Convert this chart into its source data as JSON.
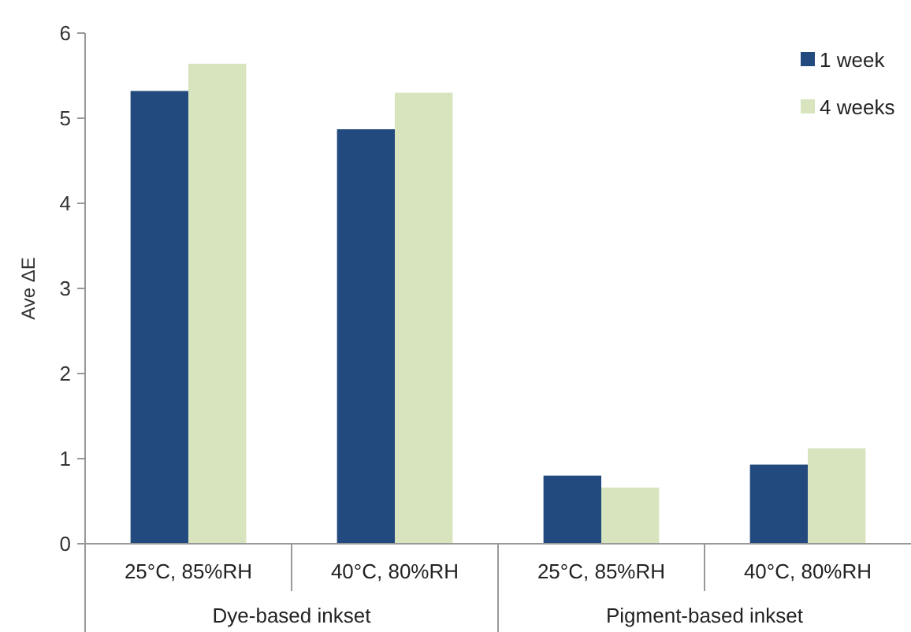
{
  "chart_data": {
    "type": "bar",
    "ylabel": "Ave ΔE",
    "categories": [
      "25°C, 85%RH",
      "40°C, 80%RH",
      "25°C, 85%RH",
      "40°C, 80%RH"
    ],
    "series": [
      {
        "name": "1 week",
        "color": "#234a7e",
        "values": [
          5.32,
          4.87,
          0.8,
          0.93
        ]
      },
      {
        "name": "4 weeks",
        "color": "#d7e4bd",
        "values": [
          5.64,
          5.3,
          0.66,
          1.12
        ]
      }
    ],
    "ylim": [
      0,
      6
    ],
    "yticks": [
      0,
      1,
      2,
      3,
      4,
      5,
      6
    ],
    "grid": false,
    "legend": "top right",
    "annotations": [
      "Dye-based inkset",
      "Pigment-based inkset"
    ]
  }
}
